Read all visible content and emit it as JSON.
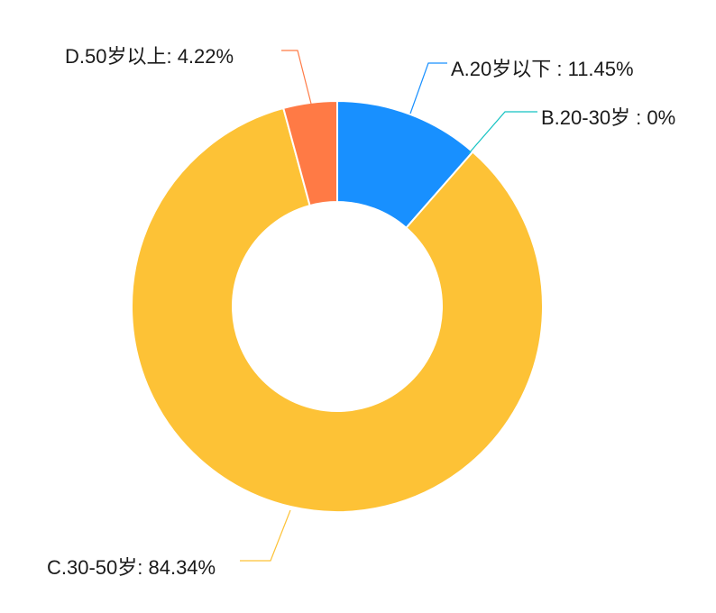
{
  "chart_data": {
    "type": "pie",
    "variant": "donut",
    "title": "",
    "slices": [
      {
        "category": "A.20岁以下",
        "value": 11.45,
        "label": "A.20岁以下 : 11.45%",
        "color": "#1890ff"
      },
      {
        "category": "B.20-30岁",
        "value": 0,
        "label": "B.20-30岁 : 0%",
        "color": "#13c2c2"
      },
      {
        "category": "C.30-50岁",
        "value": 84.34,
        "label": "C.30-50岁: 84.34%",
        "color": "#fdc236"
      },
      {
        "category": "D.50岁以上",
        "value": 4.22,
        "label": "D.50岁以上: 4.22%",
        "color": "#ff7a45"
      }
    ],
    "start_angle_deg": 0,
    "direction": "clockwise",
    "value_unit": "%"
  }
}
